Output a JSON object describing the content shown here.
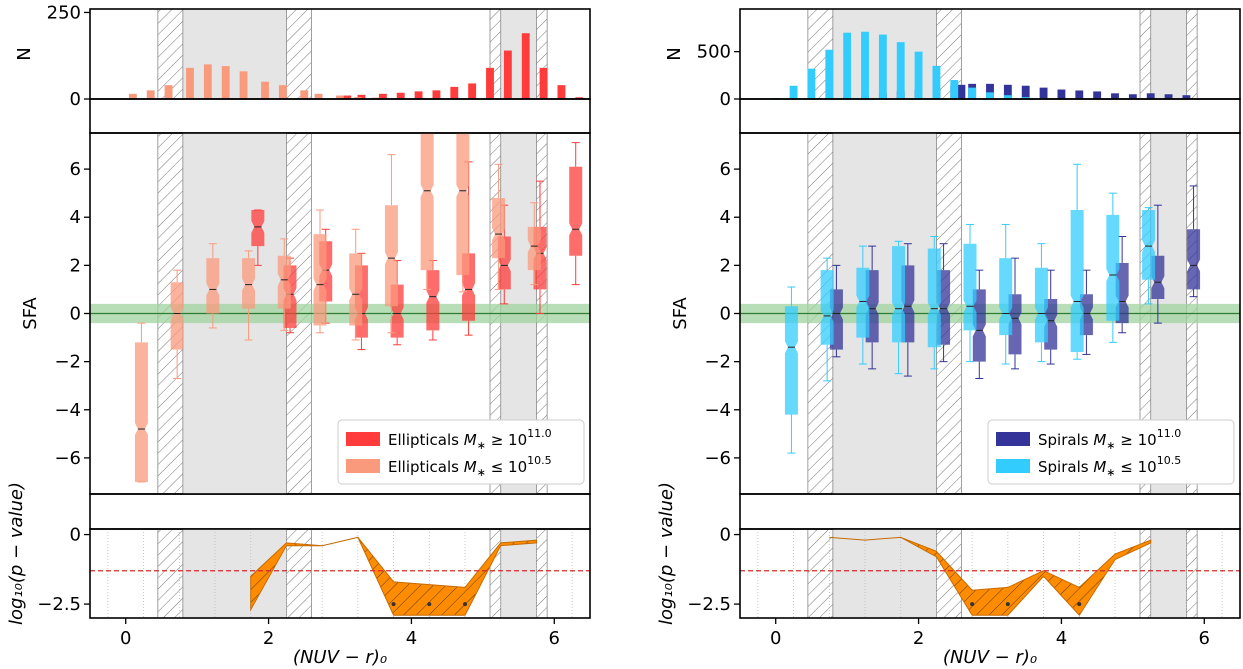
{
  "chart_data": [
    {
      "panel": "left-top-histogram",
      "type": "bar",
      "ylabel": "N",
      "ylim": [
        0,
        260
      ],
      "yticks": [
        0,
        250
      ],
      "series": [
        {
          "name": "Ellipticals M∗ ≥ 10^11.0",
          "color": "#ff3b3b",
          "x": [
            3.1,
            3.3,
            3.6,
            3.85,
            4.1,
            4.35,
            4.6,
            4.85,
            5.1,
            5.35,
            5.6,
            5.85,
            6.1,
            6.35
          ],
          "values": [
            10,
            12,
            15,
            18,
            22,
            25,
            35,
            45,
            90,
            140,
            190,
            90,
            40,
            5
          ]
        },
        {
          "name": "Ellipticals M∗ ≤ 10^10.5",
          "color": "#fa9a7c",
          "x": [
            0.1,
            0.35,
            0.6,
            0.9,
            1.15,
            1.4,
            1.65,
            1.95,
            2.2,
            2.5,
            2.7,
            3.0,
            3.25,
            3.5
          ],
          "values": [
            15,
            25,
            40,
            90,
            100,
            95,
            80,
            50,
            40,
            25,
            15,
            10,
            5,
            4
          ]
        }
      ],
      "shaded_bins": [
        [
          0.8,
          2.25
        ],
        [
          5.25,
          5.75
        ]
      ],
      "hatched_bins": [
        [
          0.45,
          0.8
        ],
        [
          2.25,
          2.6
        ],
        [
          5.1,
          5.25
        ],
        [
          5.75,
          5.9
        ]
      ]
    },
    {
      "panel": "left-middle-boxplots",
      "type": "box",
      "ylabel": "SFA",
      "ylim": [
        -7.5,
        7.5
      ],
      "yticks": [
        -6,
        -4,
        -2,
        0,
        2,
        4,
        6
      ],
      "band": [
        -0.4,
        0.4
      ],
      "series": [
        {
          "name": "Ellipticals M∗ ≥ 10^11.0",
          "color": "#ff3b3b",
          "boxes": [
            {
              "x": 1.85,
              "q1": 2.8,
              "med": 3.6,
              "q3": 4.3,
              "lo": 2.0,
              "hi": 4.3
            },
            {
              "x": 2.3,
              "q1": -0.6,
              "med": 0.8,
              "q3": 2.0,
              "lo": -0.8,
              "hi": 2.3
            },
            {
              "x": 2.8,
              "q1": 0.5,
              "med": 1.8,
              "q3": 3.0,
              "lo": -0.4,
              "hi": 3.5
            },
            {
              "x": 3.3,
              "q1": -1.0,
              "med": 0.0,
              "q3": 2.0,
              "lo": -1.5,
              "hi": 2.5
            },
            {
              "x": 3.8,
              "q1": -1.0,
              "med": 0.0,
              "q3": 1.2,
              "lo": -1.3,
              "hi": 2.2
            },
            {
              "x": 4.3,
              "q1": -0.7,
              "med": 0.7,
              "q3": 1.8,
              "lo": -1.1,
              "hi": 2.2
            },
            {
              "x": 4.8,
              "q1": -0.3,
              "med": 1.0,
              "q3": 2.5,
              "lo": -0.9,
              "hi": 6.3
            },
            {
              "x": 5.3,
              "q1": 1.0,
              "med": 2.0,
              "q3": 3.2,
              "lo": 0.4,
              "hi": 4.5
            },
            {
              "x": 5.8,
              "q1": 1.0,
              "med": 2.5,
              "q3": 3.6,
              "lo": 0.0,
              "hi": 5.5
            },
            {
              "x": 6.3,
              "q1": 2.4,
              "med": 3.5,
              "q3": 6.1,
              "lo": 1.2,
              "hi": 7.1
            }
          ]
        },
        {
          "name": "Ellipticals M∗ ≤ 10^10.5",
          "color": "#fa9a7c",
          "boxes": [
            {
              "x": 0.22,
              "q1": -7.0,
              "med": -4.8,
              "q3": -1.2,
              "lo": -7.0,
              "hi": -0.4
            },
            {
              "x": 0.72,
              "q1": -1.5,
              "med": 0.0,
              "q3": 1.3,
              "lo": -2.7,
              "hi": 1.8
            },
            {
              "x": 1.22,
              "q1": 0.0,
              "med": 1.0,
              "q3": 2.3,
              "lo": -0.6,
              "hi": 2.9
            },
            {
              "x": 1.72,
              "q1": 0.2,
              "med": 1.2,
              "q3": 2.3,
              "lo": -1.1,
              "hi": 2.6
            },
            {
              "x": 2.22,
              "q1": 0.2,
              "med": 1.4,
              "q3": 2.4,
              "lo": -0.7,
              "hi": 3.1
            },
            {
              "x": 2.72,
              "q1": -0.5,
              "med": 1.2,
              "q3": 3.3,
              "lo": -0.8,
              "hi": 4.3
            },
            {
              "x": 3.22,
              "q1": -0.5,
              "med": 0.8,
              "q3": 2.5,
              "lo": -1.1,
              "hi": 3.5
            },
            {
              "x": 3.72,
              "q1": 0.3,
              "med": 2.3,
              "q3": 4.5,
              "lo": -0.8,
              "hi": 6.6
            },
            {
              "x": 4.22,
              "q1": 1.8,
              "med": 5.1,
              "q3": 7.5,
              "lo": 1.0,
              "hi": 7.5
            },
            {
              "x": 4.72,
              "q1": 1.6,
              "med": 5.1,
              "q3": 7.5,
              "lo": 0.9,
              "hi": 7.5
            },
            {
              "x": 5.22,
              "q1": 2.3,
              "med": 3.3,
              "q3": 4.8,
              "lo": 1.0,
              "hi": 6.2
            },
            {
              "x": 5.72,
              "q1": 1.8,
              "med": 2.8,
              "q3": 3.6,
              "lo": 1.2,
              "hi": 4.6
            }
          ]
        }
      ],
      "shaded_bins": [
        [
          0.8,
          2.25
        ],
        [
          5.25,
          5.75
        ]
      ],
      "hatched_bins": [
        [
          0.45,
          0.8
        ],
        [
          2.25,
          2.6
        ],
        [
          5.1,
          5.25
        ],
        [
          5.75,
          5.9
        ]
      ]
    },
    {
      "panel": "left-bottom-pvalue",
      "type": "area",
      "xlabel": "(NUV − r)₀",
      "xlim": [
        -0.5,
        6.5
      ],
      "xticks": [
        0,
        2,
        4,
        6
      ],
      "ylabel": "log₁₀(p − value)",
      "ylim": [
        -3.0,
        0.2
      ],
      "yticks": [
        0.0,
        -2.5
      ],
      "threshold": -1.3,
      "band": [
        {
          "x": 1.75,
          "lo": -2.7,
          "hi": -1.5
        },
        {
          "x": 2.25,
          "lo": -0.4,
          "hi": -0.3
        },
        {
          "x": 2.75,
          "lo": -0.4,
          "hi": -0.4
        },
        {
          "x": 3.25,
          "lo": -0.1,
          "hi": -0.1
        },
        {
          "x": 3.75,
          "lo": -2.9,
          "hi": -1.7
        },
        {
          "x": 4.25,
          "lo": -2.9,
          "hi": -1.8
        },
        {
          "x": 4.75,
          "lo": -2.9,
          "hi": -1.9
        },
        {
          "x": 5.25,
          "lo": -0.4,
          "hi": -0.3
        },
        {
          "x": 5.75,
          "lo": -0.3,
          "hi": -0.2
        }
      ],
      "markers_x": [
        3.75,
        4.25,
        4.75
      ],
      "shaded_bins": [
        [
          0.8,
          2.25
        ],
        [
          5.25,
          5.75
        ]
      ],
      "hatched_bins": [
        [
          0.45,
          0.8
        ],
        [
          2.25,
          2.6
        ],
        [
          5.1,
          5.25
        ],
        [
          5.75,
          5.9
        ]
      ]
    },
    {
      "panel": "right-top-histogram",
      "type": "bar",
      "ylabel": "N",
      "ylim": [
        0,
        950
      ],
      "yticks": [
        0,
        500
      ],
      "series": [
        {
          "name": "Spirals M∗ ≥ 10^11.0",
          "color": "#333399",
          "x": [
            1.0,
            1.25,
            1.5,
            1.75,
            2.0,
            2.25,
            2.5,
            2.6,
            2.75,
            3.0,
            3.25,
            3.5,
            3.75,
            4.0,
            4.25,
            4.5,
            4.75,
            5.0,
            5.25,
            5.5,
            5.75
          ],
          "values": [
            20,
            30,
            60,
            80,
            100,
            120,
            140,
            150,
            160,
            160,
            150,
            140,
            120,
            100,
            90,
            80,
            60,
            50,
            60,
            50,
            40
          ]
        },
        {
          "name": "Spirals M∗ ≤ 10^10.5",
          "color": "#33ccff",
          "x": [
            0.0,
            0.25,
            0.5,
            0.75,
            1.0,
            1.25,
            1.5,
            1.75,
            2.0,
            2.25,
            2.5,
            2.75,
            3.0,
            3.25,
            3.5,
            3.75
          ],
          "values": [
            10,
            140,
            320,
            520,
            700,
            710,
            680,
            600,
            500,
            350,
            200,
            120,
            70,
            40,
            20,
            10
          ]
        }
      ],
      "shaded_bins": [
        [
          0.8,
          2.25
        ],
        [
          5.25,
          5.75
        ]
      ],
      "hatched_bins": [
        [
          0.45,
          0.8
        ],
        [
          2.25,
          2.6
        ],
        [
          5.1,
          5.25
        ],
        [
          5.75,
          5.9
        ]
      ]
    },
    {
      "panel": "right-middle-boxplots",
      "type": "box",
      "ylabel": "SFA",
      "ylim": [
        -7.5,
        7.5
      ],
      "yticks": [
        -6,
        -4,
        -2,
        0,
        2,
        4,
        6
      ],
      "band": [
        -0.4,
        0.4
      ],
      "series": [
        {
          "name": "Spirals M∗ ≥ 10^11.0",
          "color": "#333399",
          "boxes": [
            {
              "x": 0.85,
              "q1": -1.5,
              "med": 0.0,
              "q3": 1.0,
              "lo": -1.8,
              "hi": 2.0
            },
            {
              "x": 1.35,
              "q1": -1.2,
              "med": 0.2,
              "q3": 1.8,
              "lo": -2.3,
              "hi": 2.8
            },
            {
              "x": 1.85,
              "q1": -1.2,
              "med": 0.3,
              "q3": 2.0,
              "lo": -2.6,
              "hi": 2.9
            },
            {
              "x": 2.35,
              "q1": -1.3,
              "med": 0.2,
              "q3": 1.8,
              "lo": -2.0,
              "hi": 2.9
            },
            {
              "x": 2.85,
              "q1": -2.0,
              "med": -0.7,
              "q3": 1.0,
              "lo": -2.7,
              "hi": 1.8
            },
            {
              "x": 3.35,
              "q1": -1.7,
              "med": -0.2,
              "q3": 0.8,
              "lo": -2.3,
              "hi": 2.3
            },
            {
              "x": 3.85,
              "q1": -1.5,
              "med": -0.3,
              "q3": 0.6,
              "lo": -2.1,
              "hi": 1.8
            },
            {
              "x": 4.35,
              "q1": -0.9,
              "med": 0.0,
              "q3": 0.8,
              "lo": -1.7,
              "hi": 1.8
            },
            {
              "x": 4.85,
              "q1": -0.4,
              "med": 0.5,
              "q3": 2.1,
              "lo": -0.8,
              "hi": 3.2
            },
            {
              "x": 5.35,
              "q1": 0.6,
              "med": 1.3,
              "q3": 2.4,
              "lo": -0.4,
              "hi": 4.5
            },
            {
              "x": 5.85,
              "q1": 1.0,
              "med": 2.0,
              "q3": 3.5,
              "lo": 0.7,
              "hi": 5.3
            }
          ]
        },
        {
          "name": "Spirals M∗ ≤ 10^10.5",
          "color": "#33ccff",
          "boxes": [
            {
              "x": 0.22,
              "q1": -4.2,
              "med": -1.4,
              "q3": 0.3,
              "lo": -5.8,
              "hi": 1.1
            },
            {
              "x": 0.72,
              "q1": -1.3,
              "med": -0.1,
              "q3": 1.8,
              "lo": -2.8,
              "hi": 2.3
            },
            {
              "x": 1.22,
              "q1": -1.0,
              "med": 0.5,
              "q3": 1.9,
              "lo": -2.1,
              "hi": 2.8
            },
            {
              "x": 1.72,
              "q1": -1.2,
              "med": 0.2,
              "q3": 2.8,
              "lo": -2.5,
              "hi": 3.0
            },
            {
              "x": 2.22,
              "q1": -1.4,
              "med": 0.2,
              "q3": 2.7,
              "lo": -2.3,
              "hi": 3.2
            },
            {
              "x": 2.72,
              "q1": -0.7,
              "med": 0.3,
              "q3": 2.9,
              "lo": -2.0,
              "hi": 3.7
            },
            {
              "x": 3.22,
              "q1": -0.9,
              "med": 0.0,
              "q3": 2.3,
              "lo": -2.1,
              "hi": 3.7
            },
            {
              "x": 3.72,
              "q1": -1.2,
              "med": 0.0,
              "q3": 1.9,
              "lo": -2.0,
              "hi": 2.9
            },
            {
              "x": 4.22,
              "q1": -1.6,
              "med": 0.5,
              "q3": 4.3,
              "lo": -1.9,
              "hi": 6.2
            },
            {
              "x": 4.72,
              "q1": -0.3,
              "med": 1.6,
              "q3": 4.1,
              "lo": -1.2,
              "hi": 5.0
            },
            {
              "x": 5.22,
              "q1": 1.4,
              "med": 2.8,
              "q3": 4.3,
              "lo": 0.4,
              "hi": 4.4
            }
          ]
        }
      ],
      "shaded_bins": [
        [
          0.8,
          2.25
        ],
        [
          5.25,
          5.75
        ]
      ],
      "hatched_bins": [
        [
          0.45,
          0.8
        ],
        [
          2.25,
          2.6
        ],
        [
          5.1,
          5.25
        ],
        [
          5.75,
          5.9
        ]
      ]
    },
    {
      "panel": "right-bottom-pvalue",
      "type": "area",
      "xlabel": "(NUV − r)₀",
      "xlim": [
        -0.5,
        6.5
      ],
      "xticks": [
        0,
        2,
        4,
        6
      ],
      "ylabel": "log₁₀(p − value)",
      "ylim": [
        -3.0,
        0.2
      ],
      "yticks": [
        0.0,
        -2.5
      ],
      "threshold": -1.3,
      "band": [
        {
          "x": 0.75,
          "lo": -0.1,
          "hi": -0.1
        },
        {
          "x": 1.25,
          "lo": -0.2,
          "hi": -0.2
        },
        {
          "x": 1.75,
          "lo": -0.1,
          "hi": -0.1
        },
        {
          "x": 2.25,
          "lo": -0.8,
          "hi": -0.6
        },
        {
          "x": 2.75,
          "lo": -2.9,
          "hi": -2.0
        },
        {
          "x": 3.25,
          "lo": -2.9,
          "hi": -1.9
        },
        {
          "x": 3.75,
          "lo": -1.5,
          "hi": -1.3
        },
        {
          "x": 4.25,
          "lo": -2.9,
          "hi": -1.9
        },
        {
          "x": 4.75,
          "lo": -0.9,
          "hi": -0.7
        },
        {
          "x": 5.25,
          "lo": -0.3,
          "hi": -0.2
        }
      ],
      "markers_x": [
        2.75,
        3.25,
        4.25
      ],
      "shaded_bins": [
        [
          0.8,
          2.25
        ],
        [
          5.25,
          5.75
        ]
      ],
      "hatched_bins": [
        [
          0.45,
          0.8
        ],
        [
          2.25,
          2.6
        ],
        [
          5.1,
          5.25
        ],
        [
          5.75,
          5.9
        ]
      ]
    }
  ],
  "legends": {
    "left": [
      {
        "prefix": "Ellipticals ",
        "sym": "M",
        "sub": "∗",
        "rel": " ≥ 10",
        "exp": "11.0",
        "color": "#ff3b3b"
      },
      {
        "prefix": "Ellipticals ",
        "sym": "M",
        "sub": "∗",
        "rel": " ≤ 10",
        "exp": "10.5",
        "color": "#fa9a7c"
      }
    ],
    "right": [
      {
        "prefix": "Spirals ",
        "sym": "M",
        "sub": "∗",
        "rel": " ≥ 10",
        "exp": "11.0",
        "color": "#333399"
      },
      {
        "prefix": "Spirals ",
        "sym": "M",
        "sub": "∗",
        "rel": " ≤ 10",
        "exp": "10.5",
        "color": "#33ccff"
      }
    ]
  },
  "colors": {
    "shade": "#e5e5e5",
    "hatch": "#777777",
    "green_band": "#9fd39f",
    "green_line": "#2e7d32",
    "threshold": "#d62728",
    "pvalue_fill": "#ff8c00"
  }
}
